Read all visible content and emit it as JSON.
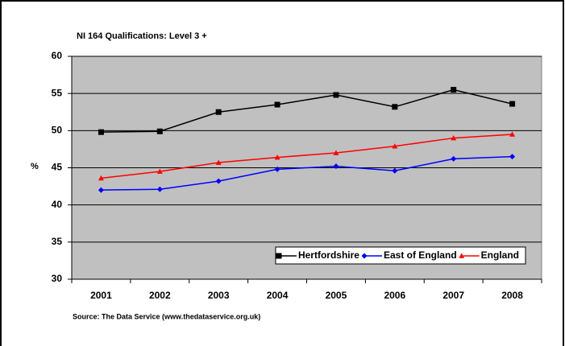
{
  "chart_data": {
    "type": "line",
    "title": "NI 164 Qualifications: Level 3 +",
    "y_label": "%",
    "source": "Source: The Data Service (www.thedataservice.org.uk)",
    "categories": [
      "2001",
      "2002",
      "2003",
      "2004",
      "2005",
      "2006",
      "2007",
      "2008"
    ],
    "series": [
      {
        "name": "Hertfordshire",
        "color": "#000000",
        "marker": "square",
        "values": [
          49.8,
          49.9,
          52.5,
          53.5,
          54.8,
          53.2,
          55.5,
          53.6
        ]
      },
      {
        "name": "East of England",
        "color": "#0000ff",
        "marker": "diamond",
        "values": [
          42.0,
          42.1,
          43.2,
          44.8,
          45.2,
          44.6,
          46.2,
          46.5
        ]
      },
      {
        "name": "England",
        "color": "#ff0000",
        "marker": "triangle",
        "values": [
          43.6,
          44.5,
          45.7,
          46.4,
          47.0,
          47.9,
          49.0,
          49.5
        ]
      }
    ],
    "ylim": [
      30,
      60
    ],
    "yticks": [
      30,
      35,
      40,
      45,
      50,
      55,
      60
    ],
    "grid": true,
    "legend": "bottom-right"
  }
}
